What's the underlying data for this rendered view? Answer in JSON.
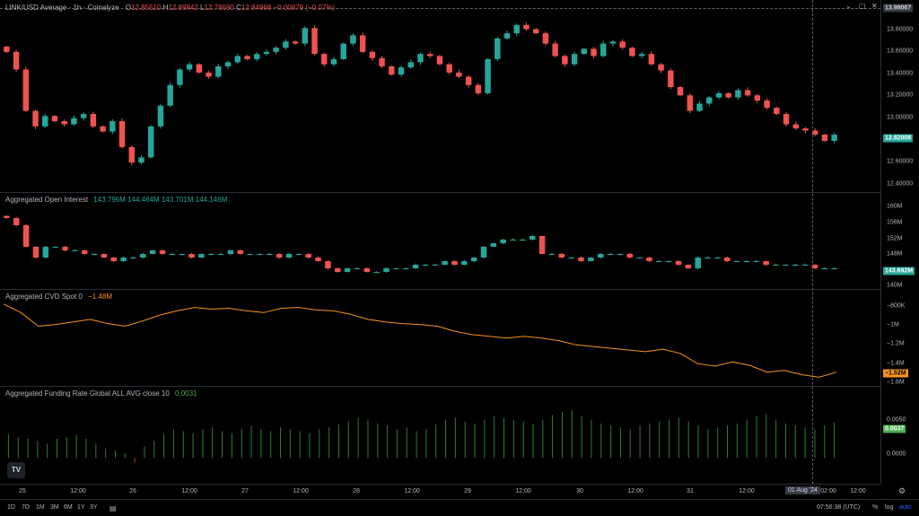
{
  "title_bar": {
    "symbol": "LINK/USD Average · 1h · Coinalyze",
    "o_label": "O",
    "o": "12.85510",
    "h_label": "H",
    "h": "12.89842",
    "l_label": "L",
    "l": "12.78690",
    "c_label": "C",
    "c": "12.84968",
    "change": "−0.00879 (−0.07%)"
  },
  "price_pane": {
    "ticks": [
      "13.80000",
      "13.60000",
      "13.40000",
      "13.20000",
      "13.00000",
      "12.60000",
      "12.40000"
    ],
    "crosshair_price": "13.98067",
    "last_price": "12.82008",
    "colors": {
      "up": "#26a69a",
      "down": "#ef5350"
    }
  },
  "oi_pane": {
    "label": "Aggregated Open Interest",
    "values": [
      "143.796M",
      "144.464M",
      "143.701M",
      "144.146M"
    ],
    "ticks": [
      "160M",
      "156M",
      "152M",
      "148M",
      "140M"
    ],
    "last": "143.692M"
  },
  "cvd_pane": {
    "label": "Aggregated CVD Spot 0",
    "value": "−1.48M",
    "ticks": [
      "−800K",
      "−1M",
      "−1.2M",
      "−1.4M",
      "−1.6M"
    ],
    "last": "−1.52M",
    "color": "#f7931a"
  },
  "funding_pane": {
    "label": "Aggregated Funding Rate Global ALL AVG close 10",
    "value": "0.0031",
    "ticks": [
      "0.0050",
      "0.0000"
    ],
    "last": "0.0037",
    "color": "#4caf50"
  },
  "time_axis": {
    "labels": [
      "25",
      "12:00",
      "26",
      "12:00",
      "27",
      "12:00",
      "28",
      "12:00",
      "29",
      "12:00",
      "30",
      "12:00",
      "31",
      "12:00",
      "02:00",
      "12:00"
    ],
    "crosshair_date": "01 Aug '24"
  },
  "bottom_bar": {
    "ranges": [
      "1D",
      "7D",
      "1M",
      "3M",
      "6M",
      "1Y",
      "3Y"
    ],
    "clock": "07:56:38 (UTC)",
    "percent": "%",
    "log": "log",
    "auto": "auto"
  },
  "logo_text": "TV",
  "chart_data": [
    {
      "type": "candlestick",
      "series": [
        {
          "name": "LINK/USD Average",
          "values": [
            13.62,
            13.45,
            13.05,
            12.9,
            13.0,
            12.95,
            12.92,
            12.98,
            13.02,
            12.9,
            12.85,
            12.95,
            12.7,
            12.55,
            12.6,
            12.9,
            13.1,
            13.3,
            13.45,
            13.5,
            13.42,
            13.38,
            13.48,
            13.52,
            13.58,
            13.55,
            13.6,
            13.62,
            13.66,
            13.72,
            13.7,
            13.85,
            13.6,
            13.5,
            13.55,
            13.7,
            13.78,
            13.62,
            13.56,
            13.48,
            13.4,
            13.47,
            13.52,
            13.6,
            13.58,
            13.5,
            13.42,
            13.38,
            13.3,
            13.22,
            13.55,
            13.75,
            13.8,
            13.88,
            13.84,
            13.8,
            13.7,
            13.58,
            13.5,
            13.6,
            13.65,
            13.58,
            13.7,
            13.72,
            13.66,
            13.58,
            13.6,
            13.5,
            13.44,
            13.28,
            13.2,
            13.05,
            13.12,
            13.18,
            13.22,
            13.18,
            13.25,
            13.2,
            13.15,
            13.08,
            13.02,
            12.92,
            12.88,
            12.86,
            12.82,
            12.76,
            12.82
          ]
        }
      ],
      "ylim": [
        12.3,
        14.0
      ]
    },
    {
      "type": "candlestick",
      "series": [
        {
          "name": "Aggregated Open Interest",
          "values": [
            158,
            156,
            150,
            147,
            150,
            150,
            149,
            149,
            148,
            148,
            147,
            146,
            147,
            147,
            148,
            149,
            148,
            148,
            148,
            147,
            148,
            148,
            148,
            149,
            148,
            148,
            148,
            148,
            147,
            148,
            148,
            147,
            146,
            144,
            143,
            144,
            144,
            143,
            143,
            144,
            144,
            144,
            145,
            145,
            145,
            146,
            145,
            146,
            147,
            150,
            151,
            152,
            152,
            152,
            153,
            148,
            148,
            147,
            147,
            146,
            147,
            148,
            148,
            148,
            147,
            147,
            146,
            146,
            146,
            145,
            144,
            147,
            147,
            147,
            146,
            146,
            146,
            146,
            145,
            145,
            145,
            145,
            145,
            144,
            144,
            144
          ]
        }
      ],
      "ylim": [
        139,
        162
      ]
    },
    {
      "type": "line",
      "series": [
        {
          "name": "Aggregated CVD Spot 0",
          "values": [
            -0.72,
            -0.82,
            -0.98,
            -0.96,
            -0.93,
            -0.9,
            -0.95,
            -0.98,
            -0.92,
            -0.85,
            -0.8,
            -0.76,
            -0.78,
            -0.77,
            -0.8,
            -0.82,
            -0.77,
            -0.76,
            -0.79,
            -0.8,
            -0.84,
            -0.9,
            -0.93,
            -0.95,
            -0.96,
            -0.98,
            -1.04,
            -1.08,
            -1.1,
            -1.12,
            -1.1,
            -1.12,
            -1.15,
            -1.2,
            -1.22,
            -1.24,
            -1.26,
            -1.28,
            -1.25,
            -1.3,
            -1.42,
            -1.45,
            -1.4,
            -1.44,
            -1.52,
            -1.5,
            -1.55,
            -1.58,
            -1.52
          ]
        }
      ],
      "ylim": [
        -1.65,
        -0.68
      ]
    },
    {
      "type": "bar",
      "series": [
        {
          "name": "Aggregated Funding Rate Global ALL AVG close 10",
          "values": [
            0.0025,
            0.0022,
            0.002,
            0.0018,
            0.0015,
            0.002,
            0.0022,
            0.0024,
            0.002,
            0.0015,
            0.001,
            0.0008,
            0.0005,
            -0.0005,
            0.0012,
            0.0018,
            0.0025,
            0.003,
            0.0028,
            0.0026,
            0.003,
            0.0032,
            0.0028,
            0.0026,
            0.003,
            0.0034,
            0.003,
            0.0028,
            0.0032,
            0.003,
            0.0028,
            0.0026,
            0.003,
            0.0032,
            0.0035,
            0.0038,
            0.0042,
            0.004,
            0.0036,
            0.0034,
            0.003,
            0.0032,
            0.0028,
            0.003,
            0.0035,
            0.004,
            0.0042,
            0.0038,
            0.0036,
            0.004,
            0.0044,
            0.0042,
            0.004,
            0.0038,
            0.0036,
            0.004,
            0.0045,
            0.0048,
            0.005,
            0.0044,
            0.004,
            0.0036,
            0.0034,
            0.0032,
            0.003,
            0.0034,
            0.0036,
            0.0038,
            0.004,
            0.0042,
            0.0038,
            0.0034,
            0.003,
            0.0032,
            0.0034,
            0.0036,
            0.004,
            0.0044,
            0.0046,
            0.004,
            0.0036,
            0.0034,
            0.0032,
            0.003,
            0.0034,
            0.0037
          ]
        }
      ],
      "ylim": [
        -0.0025,
        0.0065
      ]
    }
  ]
}
